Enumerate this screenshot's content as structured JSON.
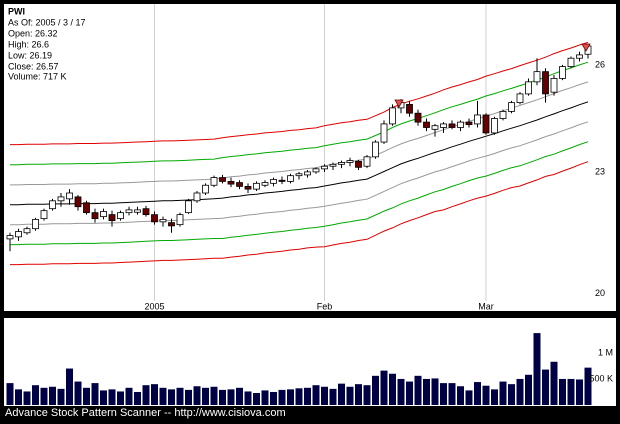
{
  "chart_data": {
    "type": "candlestick",
    "title": "PWI",
    "info": [
      "As Of: 2005 / 3 / 17",
      "Open: 26.32",
      "High: 26.6",
      "Low: 26.19",
      "Close: 26.57",
      "Volume: 717 K"
    ],
    "footer": "Advance Stock Pattern Scanner -- http://www.cisiova.com",
    "categories": [
      null,
      null,
      null,
      null,
      null,
      null,
      null,
      null,
      null,
      null,
      null,
      null,
      null,
      null,
      null,
      null,
      null,
      "2005",
      null,
      null,
      null,
      null,
      null,
      null,
      null,
      null,
      null,
      null,
      null,
      null,
      null,
      null,
      null,
      null,
      null,
      null,
      null,
      "Feb",
      null,
      null,
      null,
      null,
      null,
      null,
      null,
      null,
      null,
      null,
      null,
      null,
      null,
      null,
      null,
      null,
      null,
      null,
      "Mar",
      null,
      null,
      null,
      null,
      null,
      null,
      null,
      null,
      null,
      null,
      null,
      null
    ],
    "open": [
      21.3,
      21.35,
      21.45,
      21.55,
      21.8,
      22.05,
      22.25,
      22.3,
      22.35,
      22.2,
      21.95,
      21.85,
      21.9,
      21.8,
      21.95,
      21.96,
      22.05,
      21.9,
      21.72,
      21.7,
      21.65,
      21.95,
      22.25,
      22.45,
      22.65,
      22.85,
      22.75,
      22.72,
      22.62,
      22.55,
      22.65,
      22.7,
      22.78,
      22.75,
      22.9,
      22.92,
      23.0,
      23.08,
      23.15,
      23.2,
      23.25,
      23.28,
      23.15,
      23.4,
      23.8,
      24.3,
      24.75,
      24.85,
      24.6,
      24.35,
      24.15,
      24.2,
      24.3,
      24.2,
      24.35,
      24.3,
      24.55,
      24.05,
      24.45,
      24.65,
      24.9,
      25.15,
      25.5,
      25.8,
      25.2,
      25.6,
      25.95,
      26.2,
      26.32
    ],
    "high": [
      21.45,
      21.55,
      21.6,
      21.82,
      22.05,
      22.3,
      22.45,
      22.55,
      22.4,
      22.25,
      22.05,
      22.05,
      22.0,
      22.0,
      22.1,
      22.1,
      22.12,
      21.98,
      21.85,
      21.8,
      21.95,
      22.3,
      22.5,
      22.7,
      22.9,
      22.92,
      22.85,
      22.78,
      22.7,
      22.75,
      22.78,
      22.85,
      22.88,
      22.95,
      23.0,
      23.05,
      23.12,
      23.2,
      23.25,
      23.3,
      23.38,
      23.32,
      23.45,
      23.85,
      24.4,
      24.85,
      25.0,
      24.95,
      24.7,
      24.45,
      24.3,
      24.35,
      24.4,
      24.4,
      24.45,
      24.95,
      24.6,
      24.5,
      24.7,
      24.95,
      25.2,
      25.6,
      26.2,
      25.9,
      25.7,
      26.0,
      26.25,
      26.4,
      26.6
    ],
    "low": [
      21.0,
      21.25,
      21.4,
      21.5,
      21.75,
      22.0,
      22.1,
      22.15,
      22.0,
      21.9,
      21.7,
      21.78,
      21.6,
      21.75,
      21.88,
      21.9,
      21.85,
      21.65,
      21.6,
      21.45,
      21.6,
      21.92,
      22.2,
      22.4,
      22.6,
      22.7,
      22.6,
      22.55,
      22.45,
      22.5,
      22.6,
      22.62,
      22.68,
      22.7,
      22.8,
      22.85,
      22.95,
      23.0,
      23.05,
      23.1,
      23.15,
      23.05,
      23.1,
      23.35,
      23.75,
      24.25,
      24.6,
      24.5,
      24.25,
      24.1,
      23.95,
      24.05,
      24.15,
      24.1,
      24.2,
      24.2,
      24.0,
      24.0,
      24.4,
      24.6,
      24.85,
      25.1,
      25.4,
      24.9,
      25.1,
      25.55,
      25.9,
      26.1,
      26.19
    ],
    "close": [
      21.38,
      21.48,
      21.55,
      21.78,
      22.0,
      22.25,
      22.35,
      22.45,
      22.1,
      21.95,
      21.8,
      21.98,
      21.75,
      21.95,
      22.02,
      22.02,
      21.9,
      21.72,
      21.78,
      21.62,
      21.9,
      22.25,
      22.45,
      22.65,
      22.85,
      22.75,
      22.68,
      22.62,
      22.55,
      22.7,
      22.72,
      22.8,
      22.75,
      22.9,
      22.95,
      23.0,
      23.08,
      23.15,
      23.2,
      23.25,
      23.3,
      23.12,
      23.4,
      23.8,
      24.3,
      24.75,
      24.9,
      24.6,
      24.35,
      24.2,
      24.25,
      24.3,
      24.2,
      24.35,
      24.28,
      24.55,
      24.05,
      24.45,
      24.65,
      24.9,
      25.15,
      25.5,
      25.8,
      25.15,
      25.6,
      25.95,
      26.2,
      26.3,
      26.57
    ],
    "up_color": "#ffffff",
    "down_color": "#660000",
    "ylim": [
      19.61,
      27.88
    ],
    "yticks": [
      20,
      23,
      26
    ],
    "log_y": true,
    "bands": [
      {
        "color": "#e00000",
        "values": [
          23.73,
          23.73,
          23.74,
          23.74,
          23.74,
          23.75,
          23.75,
          23.75,
          23.76,
          23.76,
          23.76,
          23.77,
          23.77,
          23.78,
          23.79,
          23.8,
          23.81,
          23.82,
          23.83,
          23.83,
          23.84,
          23.85,
          23.86,
          23.87,
          23.88,
          23.92,
          23.95,
          23.97,
          24.0,
          24.02,
          24.05,
          24.07,
          24.09,
          24.12,
          24.14,
          24.17,
          24.19,
          24.25,
          24.29,
          24.33,
          24.36,
          24.4,
          24.43,
          24.53,
          24.63,
          24.76,
          24.86,
          24.94,
          25.01,
          25.09,
          25.17,
          25.27,
          25.35,
          25.42,
          25.5,
          25.57,
          25.67,
          25.74,
          25.82,
          25.89,
          25.98,
          26.06,
          26.14,
          26.23,
          26.34,
          26.43,
          26.51,
          26.6,
          26.68
        ]
      },
      {
        "color": "#00aa00",
        "values": [
          23.19,
          23.19,
          23.2,
          23.2,
          23.2,
          23.21,
          23.21,
          23.21,
          23.22,
          23.22,
          23.22,
          23.23,
          23.23,
          23.24,
          23.25,
          23.26,
          23.27,
          23.28,
          23.29,
          23.29,
          23.3,
          23.31,
          23.32,
          23.33,
          23.34,
          23.38,
          23.41,
          23.43,
          23.46,
          23.48,
          23.51,
          23.53,
          23.55,
          23.58,
          23.6,
          23.63,
          23.65,
          23.7,
          23.74,
          23.78,
          23.81,
          23.85,
          23.88,
          23.98,
          24.08,
          24.2,
          24.3,
          24.38,
          24.45,
          24.53,
          24.61,
          24.7,
          24.78,
          24.85,
          24.93,
          25.0,
          25.09,
          25.16,
          25.24,
          25.31,
          25.39,
          25.47,
          25.55,
          25.64,
          25.74,
          25.83,
          25.91,
          26.0,
          26.08
        ]
      },
      {
        "color": "#999999",
        "values": [
          22.66,
          22.66,
          22.67,
          22.67,
          22.67,
          22.68,
          22.68,
          22.68,
          22.69,
          22.69,
          22.69,
          22.7,
          22.7,
          22.71,
          22.72,
          22.73,
          22.74,
          22.75,
          22.76,
          22.76,
          22.77,
          22.78,
          22.79,
          22.8,
          22.81,
          22.84,
          22.87,
          22.89,
          22.92,
          22.94,
          22.97,
          22.99,
          23.01,
          23.04,
          23.06,
          23.09,
          23.11,
          23.16,
          23.2,
          23.24,
          23.27,
          23.31,
          23.34,
          23.44,
          23.54,
          23.65,
          23.75,
          23.83,
          23.9,
          23.98,
          24.06,
          24.14,
          24.22,
          24.29,
          24.37,
          24.44,
          24.52,
          24.59,
          24.67,
          24.74,
          24.82,
          24.9,
          24.98,
          25.07,
          25.16,
          25.25,
          25.33,
          25.42,
          25.5
        ]
      },
      {
        "color": "#000000",
        "values": [
          22.15,
          22.15,
          22.16,
          22.16,
          22.16,
          22.17,
          22.17,
          22.17,
          22.18,
          22.18,
          22.18,
          22.19,
          22.19,
          22.2,
          22.21,
          22.22,
          22.23,
          22.24,
          22.25,
          22.25,
          22.26,
          22.27,
          22.28,
          22.29,
          22.3,
          22.32,
          22.35,
          22.37,
          22.4,
          22.42,
          22.45,
          22.47,
          22.49,
          22.52,
          22.54,
          22.57,
          22.59,
          22.63,
          22.67,
          22.71,
          22.74,
          22.78,
          22.81,
          22.91,
          23.01,
          23.11,
          23.21,
          23.29,
          23.36,
          23.44,
          23.52,
          23.59,
          23.67,
          23.74,
          23.82,
          23.89,
          23.96,
          24.03,
          24.11,
          24.18,
          24.25,
          24.33,
          24.41,
          24.5,
          24.58,
          24.67,
          24.75,
          24.84,
          24.92
        ]
      },
      {
        "color": "#999999",
        "values": [
          21.65,
          21.65,
          21.66,
          21.66,
          21.66,
          21.67,
          21.67,
          21.67,
          21.68,
          21.68,
          21.68,
          21.69,
          21.69,
          21.7,
          21.71,
          21.72,
          21.73,
          21.74,
          21.75,
          21.75,
          21.76,
          21.77,
          21.78,
          21.79,
          21.8,
          21.81,
          21.84,
          21.86,
          21.89,
          21.91,
          21.94,
          21.96,
          21.98,
          22.01,
          22.03,
          22.06,
          22.08,
          22.11,
          22.15,
          22.19,
          22.22,
          22.26,
          22.29,
          22.39,
          22.49,
          22.59,
          22.69,
          22.77,
          22.84,
          22.92,
          23.0,
          23.06,
          23.14,
          23.21,
          23.29,
          23.36,
          23.42,
          23.49,
          23.57,
          23.64,
          23.7,
          23.78,
          23.86,
          23.95,
          24.02,
          24.11,
          24.19,
          24.28,
          24.36
        ]
      },
      {
        "color": "#00aa00",
        "values": [
          21.16,
          21.16,
          21.17,
          21.17,
          21.17,
          21.18,
          21.18,
          21.18,
          21.19,
          21.19,
          21.19,
          21.2,
          21.2,
          21.21,
          21.22,
          21.23,
          21.24,
          21.25,
          21.26,
          21.26,
          21.27,
          21.28,
          21.29,
          21.3,
          21.31,
          21.31,
          21.34,
          21.36,
          21.39,
          21.41,
          21.44,
          21.46,
          21.48,
          21.51,
          21.53,
          21.56,
          21.58,
          21.61,
          21.65,
          21.69,
          21.72,
          21.76,
          21.79,
          21.89,
          21.99,
          22.07,
          22.17,
          22.25,
          22.32,
          22.4,
          22.48,
          22.54,
          22.62,
          22.69,
          22.77,
          22.84,
          22.89,
          22.96,
          23.04,
          23.11,
          23.16,
          23.24,
          23.32,
          23.41,
          23.47,
          23.56,
          23.64,
          23.73,
          23.81
        ]
      },
      {
        "color": "#e00000",
        "values": [
          20.68,
          20.68,
          20.69,
          20.69,
          20.69,
          20.7,
          20.7,
          20.7,
          20.71,
          20.71,
          20.71,
          20.72,
          20.72,
          20.73,
          20.74,
          20.75,
          20.76,
          20.77,
          20.78,
          20.78,
          20.79,
          20.8,
          20.81,
          20.82,
          20.83,
          20.83,
          20.86,
          20.88,
          20.91,
          20.93,
          20.96,
          20.98,
          21.0,
          21.03,
          21.05,
          21.08,
          21.1,
          21.11,
          21.15,
          21.19,
          21.22,
          21.26,
          21.29,
          21.39,
          21.49,
          21.57,
          21.67,
          21.75,
          21.82,
          21.9,
          21.98,
          22.02,
          22.1,
          22.17,
          22.25,
          22.32,
          22.37,
          22.44,
          22.52,
          22.59,
          22.63,
          22.71,
          22.79,
          22.88,
          22.93,
          23.02,
          23.1,
          23.19,
          23.27
        ]
      }
    ],
    "volume": {
      "color": "#000044",
      "ylim": [
        0,
        1670000
      ],
      "yticks": [
        {
          "value": 500000,
          "label": "500 K"
        },
        {
          "value": 1000000,
          "label": "1 M"
        }
      ],
      "values": [
        420000,
        300000,
        260000,
        380000,
        330000,
        350000,
        310000,
        700000,
        450000,
        330000,
        420000,
        280000,
        300000,
        260000,
        330000,
        250000,
        380000,
        400000,
        330000,
        300000,
        330000,
        290000,
        360000,
        330000,
        350000,
        290000,
        300000,
        330000,
        260000,
        230000,
        280000,
        250000,
        290000,
        300000,
        320000,
        330000,
        380000,
        350000,
        310000,
        410000,
        350000,
        400000,
        380000,
        560000,
        660000,
        600000,
        500000,
        450000,
        560000,
        500000,
        510000,
        420000,
        420000,
        360000,
        280000,
        440000,
        370000,
        300000,
        450000,
        400000,
        500000,
        580000,
        1380000,
        680000,
        830000,
        500000,
        500000,
        490000,
        717000
      ]
    }
  }
}
